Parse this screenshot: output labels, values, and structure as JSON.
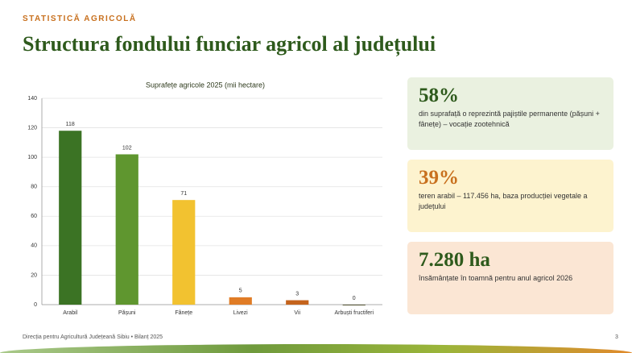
{
  "header": {
    "kicker": "STATISTICĂ AGRICOLĂ",
    "title": "Structura fondului funciar agricol al județului"
  },
  "chart_data": {
    "type": "bar",
    "title": "Suprafețe agricole 2025 (mii hectare)",
    "categories": [
      "Arabil",
      "Pășuni",
      "Fânețe",
      "Livezi",
      "Vii",
      "Arbuști fructiferi"
    ],
    "values": [
      118,
      102,
      71,
      5,
      3,
      0
    ],
    "colors": [
      "#3b7324",
      "#5f962f",
      "#f2c230",
      "#e07c26",
      "#c4631c",
      "#5a5a3a"
    ],
    "ylim": [
      0,
      140
    ],
    "yticks": [
      0,
      20,
      40,
      60,
      80,
      100,
      120,
      140
    ],
    "grid": true
  },
  "cards": [
    {
      "figure": "58%",
      "text": "din suprafață o reprezintă pajiștile permanente (pășuni + fânețe) – vocație zootehnică"
    },
    {
      "figure": "39%",
      "text": "teren arabil – 117.456 ha, baza producției vegetale a județului"
    },
    {
      "figure": "7.280 ha",
      "text": "însămânțate în toamnă pentru anul agricol 2026"
    }
  ],
  "footer": {
    "source": "Direcția pentru Agricultură Județeană Sibiu • Bilanț 2025",
    "page": "3"
  }
}
